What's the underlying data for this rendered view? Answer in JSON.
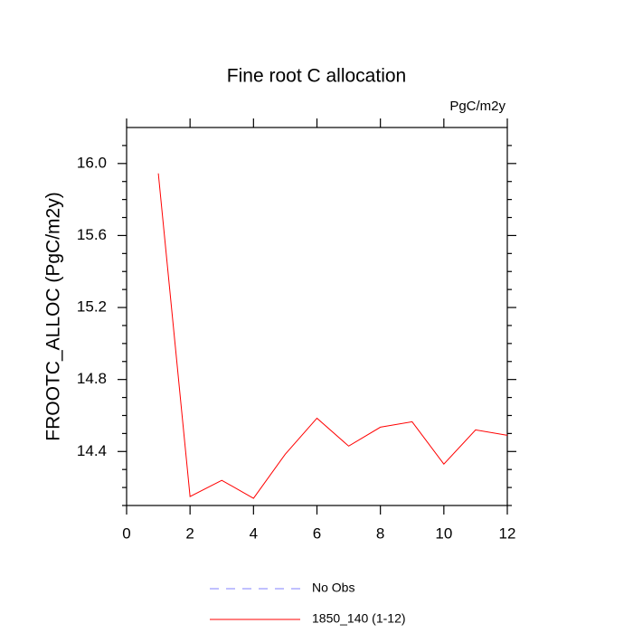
{
  "chart_data": {
    "type": "line",
    "title": "Fine root C allocation",
    "units": "PgC/m2y",
    "y_label": "FROOTC_ALLOC  (PgC/m2y)",
    "x": [
      1,
      2,
      3,
      4,
      5,
      6,
      7,
      8,
      9,
      10,
      11,
      12
    ],
    "series": [
      {
        "name": "No Obs",
        "color": "#8080ff",
        "dashed": true,
        "values": [
          null,
          null,
          null,
          null,
          null,
          null,
          null,
          null,
          null,
          null,
          null,
          null
        ]
      },
      {
        "name": "1850_140 (1-12)",
        "color": "#ff0000",
        "dashed": false,
        "values": [
          15.945,
          14.15,
          14.24,
          14.14,
          14.385,
          14.585,
          14.43,
          14.535,
          14.565,
          14.33,
          14.52,
          14.49
        ]
      }
    ],
    "xlim": [
      0,
      12
    ],
    "xticks": [
      0,
      2,
      4,
      6,
      8,
      10,
      12
    ],
    "ylim": [
      14.1,
      16.2
    ],
    "yticks": [
      {
        "value": 14.4,
        "label": "14.4"
      },
      {
        "value": 14.8,
        "label": "14.8"
      },
      {
        "value": 15.2,
        "label": "15.2"
      },
      {
        "value": 15.6,
        "label": "15.6"
      },
      {
        "value": 16.0,
        "label": "16.0"
      }
    ],
    "grid": false
  }
}
